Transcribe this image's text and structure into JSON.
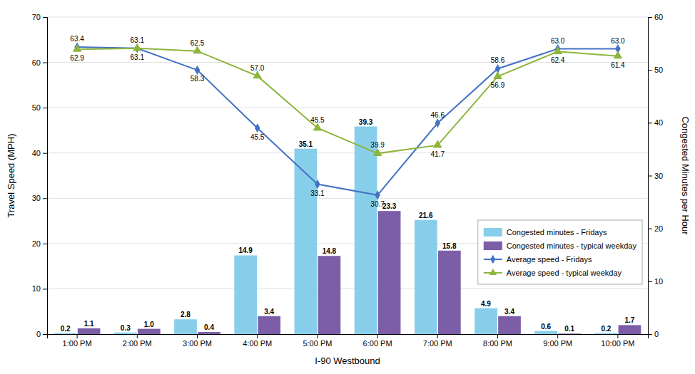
{
  "chart_data": {
    "type": "bar",
    "xlabel": "I-90 Westbound",
    "ylabel": "Travel Speed (MPH)",
    "y2label": "Congested Minutes per Hour",
    "categories": [
      "1:00 PM",
      "2:00 PM",
      "3:00 PM",
      "4:00 PM",
      "5:00 PM",
      "6:00 PM",
      "7:00 PM",
      "8:00 PM",
      "9:00 PM",
      "10:00 PM"
    ],
    "series": [
      {
        "name": "Congested minutes - Fridays",
        "type": "bar",
        "axis": "y2",
        "color": "#87CEEB",
        "values": [
          0.2,
          0.3,
          2.8,
          14.9,
          35.1,
          39.3,
          21.6,
          4.9,
          0.6,
          0.2
        ],
        "value_labels": [
          "0.2",
          "0.3",
          "2.8",
          "14.9",
          "35.1",
          "39.3",
          "21.6",
          "4.9",
          "0.6",
          "0.2"
        ]
      },
      {
        "name": "Congested minutes - typical weekday",
        "type": "bar",
        "axis": "y2",
        "color": "#7B5EA7",
        "values": [
          1.1,
          1.0,
          0.4,
          3.4,
          14.8,
          23.3,
          15.8,
          3.4,
          0.1,
          1.7
        ],
        "value_labels": [
          "1.1",
          "1.0",
          "0.4",
          "3.4",
          "14.8",
          "23.3",
          "15.8",
          "3.4",
          "0.1",
          "1.7"
        ]
      },
      {
        "name": "Average speed - Fridays",
        "type": "line",
        "marker": "diamond",
        "color": "#4472C4",
        "values": [
          63.4,
          63.1,
          58.3,
          45.5,
          33.1,
          30.7,
          46.6,
          58.6,
          63.0,
          63.0
        ],
        "value_labels": [
          "63.4",
          "63.1",
          "58.3",
          "45.5",
          "33.1",
          "30.7",
          "46.6",
          "58.6",
          "63.0",
          "63.0"
        ]
      },
      {
        "name": "Average speed - typical weekday",
        "type": "line",
        "marker": "triangle",
        "color": "#8DB53C",
        "values": [
          62.9,
          63.1,
          62.5,
          57.0,
          45.5,
          39.9,
          41.7,
          56.9,
          62.4,
          61.4
        ],
        "value_labels": [
          "62.9",
          "63.1",
          "62.5",
          "57.0",
          "45.5",
          "39.9",
          "41.7",
          "56.9",
          "62.4",
          "61.4"
        ]
      }
    ],
    "ylim": [
      0,
      70
    ],
    "yticks": [
      0,
      10,
      20,
      30,
      40,
      50,
      60,
      70
    ],
    "y2lim": [
      0,
      60
    ],
    "y2ticks": [
      0,
      10,
      20,
      30,
      40,
      50,
      60
    ],
    "grid": true,
    "data_labels": true,
    "legend": "lower right"
  }
}
